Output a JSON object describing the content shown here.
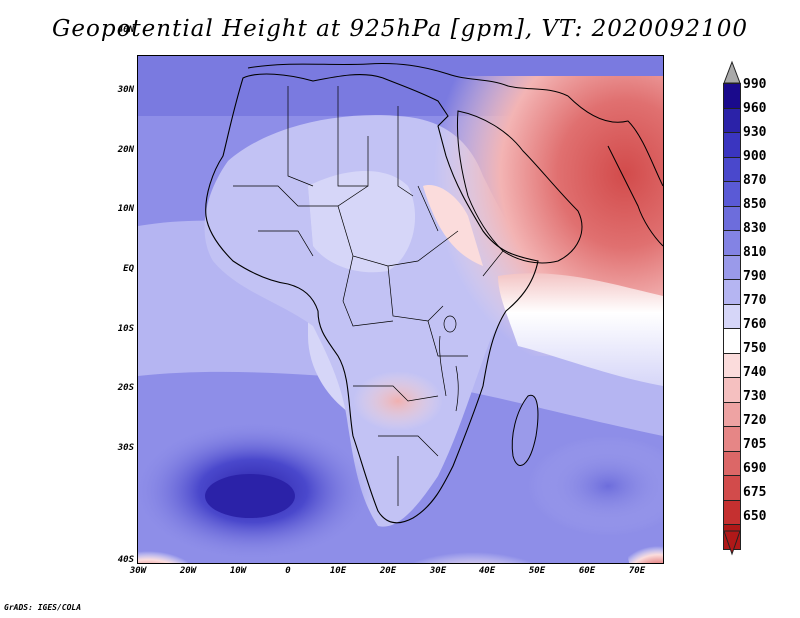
{
  "title": "Geopotential Height at 925hPa [gpm], VT: 2020092100",
  "footer": "GrADS: IGES/COLA",
  "map": {
    "lat_labels": [
      "40N",
      "30N",
      "20N",
      "10N",
      "EQ",
      "10S",
      "20S",
      "30S",
      "40S"
    ],
    "lon_labels": [
      "30W",
      "20W",
      "10W",
      "0",
      "10E",
      "20E",
      "30E",
      "40E",
      "50E",
      "60E",
      "70E"
    ]
  },
  "colorbar": {
    "levels": [
      "990",
      "960",
      "930",
      "900",
      "870",
      "850",
      "830",
      "810",
      "790",
      "770",
      "760",
      "750",
      "740",
      "730",
      "720",
      "705",
      "690",
      "675",
      "650"
    ],
    "colors": [
      "#1a0a8c",
      "#2b22a8",
      "#3a35c0",
      "#4a48cc",
      "#5a5ad6",
      "#6d6ddc",
      "#8383e4",
      "#9a9aea",
      "#b5b5f2",
      "#d6d6f8",
      "#ffffff",
      "#fbdcdc",
      "#f5c0c0",
      "#eea3a3",
      "#e68686",
      "#dc6767",
      "#d24b4b",
      "#c53030",
      "#b01818"
    ]
  }
}
